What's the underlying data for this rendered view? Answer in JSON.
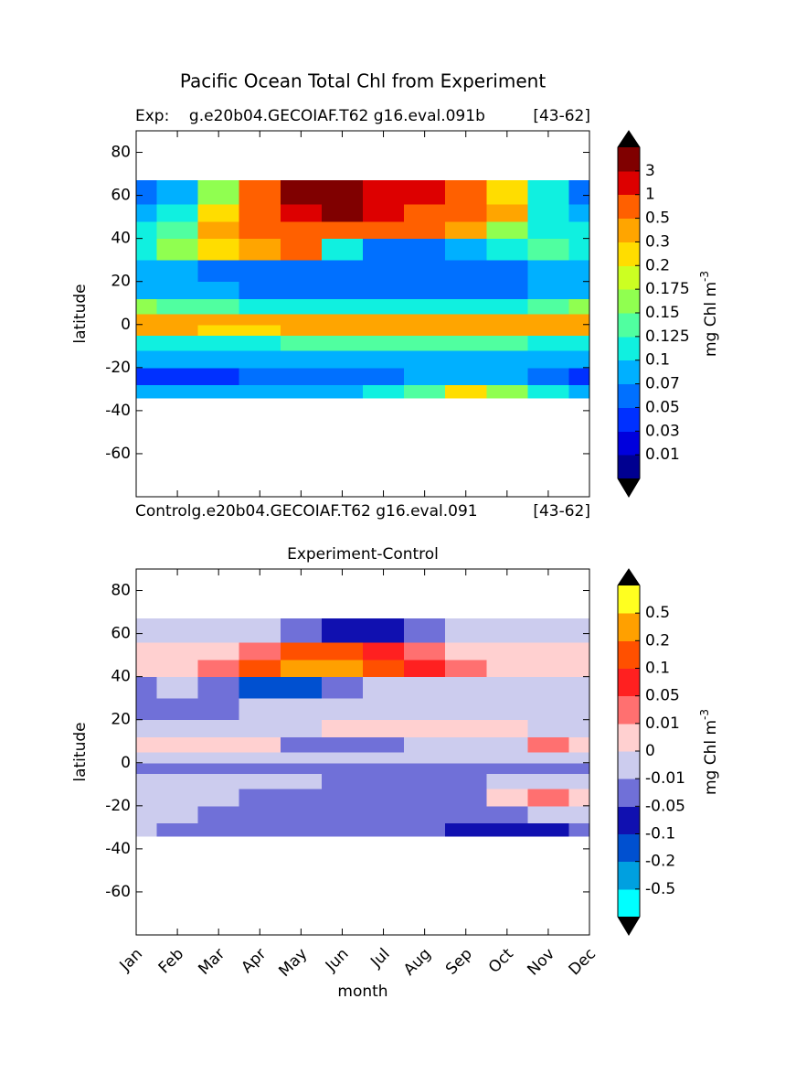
{
  "chart_data": [
    {
      "type": "contour",
      "title": "Pacific Ocean Total Chl from Experiment",
      "subtitle_left": "Exp:    g.e20b04.GECOIAF.T62 g16.eval.091b",
      "subtitle_right": "[43-62]",
      "footer_left": "Controlg.e20b04.GECOIAF.T62 g16.eval.091",
      "footer_right": "[43-62]",
      "ylabel": "latitude",
      "ylim": [
        -80,
        90
      ],
      "yticks": [
        -60,
        -40,
        -20,
        0,
        20,
        40,
        60,
        80
      ],
      "lat_bins": [
        -34,
        -28,
        -20,
        -12,
        -5,
        0,
        5,
        12,
        20,
        30,
        40,
        48,
        56,
        67
      ],
      "z": [
        [
          0.08,
          0.08,
          0.08,
          0.08,
          0.08,
          0.09,
          0.11,
          0.14,
          0.2,
          0.15,
          0.1,
          0.08
        ],
        [
          0.04,
          0.04,
          0.045,
          0.06,
          0.065,
          0.065,
          0.065,
          0.07,
          0.08,
          0.07,
          0.06,
          0.045
        ],
        [
          0.085,
          0.085,
          0.085,
          0.085,
          0.085,
          0.085,
          0.09,
          0.09,
          0.09,
          0.085,
          0.085,
          0.085
        ],
        [
          0.11,
          0.11,
          0.12,
          0.12,
          0.13,
          0.13,
          0.14,
          0.14,
          0.14,
          0.13,
          0.12,
          0.11
        ],
        [
          0.3,
          0.3,
          0.25,
          0.25,
          0.3,
          0.3,
          0.35,
          0.35,
          0.3,
          0.3,
          0.3,
          0.35
        ],
        [
          0.35,
          0.35,
          0.3,
          0.3,
          0.35,
          0.35,
          0.4,
          0.4,
          0.35,
          0.35,
          0.35,
          0.35
        ],
        [
          0.15,
          0.14,
          0.13,
          0.12,
          0.12,
          0.12,
          0.12,
          0.12,
          0.12,
          0.12,
          0.13,
          0.15
        ],
        [
          0.09,
          0.08,
          0.08,
          0.06,
          0.06,
          0.06,
          0.06,
          0.06,
          0.06,
          0.06,
          0.08,
          0.09
        ],
        [
          0.08,
          0.07,
          0.06,
          0.05,
          0.05,
          0.05,
          0.055,
          0.055,
          0.055,
          0.06,
          0.07,
          0.08
        ],
        [
          0.12,
          0.15,
          0.25,
          0.35,
          0.6,
          0.1,
          0.06,
          0.06,
          0.07,
          0.1,
          0.13,
          0.12
        ],
        [
          0.1,
          0.13,
          0.3,
          0.6,
          0.7,
          0.7,
          0.6,
          0.5,
          0.3,
          0.15,
          0.12,
          0.1
        ],
        [
          0.08,
          0.1,
          0.2,
          0.6,
          2,
          4,
          1.2,
          0.8,
          0.7,
          0.3,
          0.12,
          0.08
        ],
        [
          0.05,
          0.07,
          0.15,
          0.5,
          5,
          5,
          2,
          1,
          0.8,
          0.2,
          0.1,
          0.05
        ]
      ],
      "levels": [
        0.01,
        0.03,
        0.05,
        0.07,
        0.1,
        0.125,
        0.15,
        0.175,
        0.2,
        0.3,
        0.5,
        1,
        3
      ],
      "colors": [
        "#000090",
        "#0000dd",
        "#0030ff",
        "#0070ff",
        "#00b0ff",
        "#10f0e0",
        "#50ffa0",
        "#90ff50",
        "#ccff22",
        "#ffdd00",
        "#ffa500",
        "#ff6000",
        "#dd0000",
        "#800000"
      ],
      "extend_colors": [
        "#000000",
        "#000000"
      ],
      "colorbar_label": "mg Chl m",
      "colorbar_label_sup": "-3"
    },
    {
      "type": "contour",
      "title": "Experiment-Control",
      "ylabel": "latitude",
      "xlabel": "month",
      "categories": [
        "Jan",
        "Feb",
        "Mar",
        "Apr",
        "May",
        "Jun",
        "Jul",
        "Aug",
        "Sep",
        "Oct",
        "Nov",
        "Dec"
      ],
      "ylim": [
        -80,
        90
      ],
      "yticks": [
        -60,
        -40,
        -20,
        0,
        20,
        40,
        60,
        80
      ],
      "lat_bins": [
        -34,
        -28,
        -20,
        -12,
        -5,
        0,
        5,
        12,
        20,
        30,
        40,
        48,
        56,
        67
      ],
      "z": [
        [
          -0.01,
          -0.03,
          -0.03,
          -0.03,
          -0.03,
          -0.03,
          -0.03,
          -0.03,
          -0.08,
          -0.08,
          -0.08,
          -0.03
        ],
        [
          -0.005,
          -0.005,
          -0.03,
          -0.03,
          -0.03,
          -0.03,
          -0.03,
          -0.03,
          -0.03,
          -0.03,
          -0.005,
          -0.005
        ],
        [
          -0.005,
          -0.005,
          -0.005,
          -0.03,
          -0.03,
          -0.03,
          -0.03,
          -0.03,
          -0.03,
          0.005,
          0.02,
          0.005
        ],
        [
          -0.005,
          -0.005,
          -0.005,
          -0.005,
          -0.005,
          -0.03,
          -0.03,
          -0.03,
          -0.03,
          -0.005,
          -0.005,
          -0.005
        ],
        [
          -0.03,
          -0.03,
          -0.03,
          -0.03,
          -0.03,
          -0.03,
          -0.03,
          -0.03,
          -0.03,
          -0.03,
          -0.03,
          -0.03
        ],
        [
          -0.005,
          -0.005,
          -0.005,
          -0.005,
          -0.005,
          -0.005,
          -0.005,
          -0.005,
          -0.005,
          -0.005,
          -0.005,
          -0.005
        ],
        [
          0.005,
          0.005,
          0.005,
          0.005,
          -0.03,
          -0.03,
          -0.03,
          -0.005,
          -0.005,
          -0.005,
          0.02,
          0.005
        ],
        [
          -0.005,
          -0.005,
          -0.005,
          -0.005,
          -0.005,
          0.005,
          0.005,
          0.005,
          0.005,
          0.005,
          -0.005,
          -0.005
        ],
        [
          -0.03,
          -0.03,
          -0.03,
          -0.005,
          -0.005,
          -0.005,
          -0.005,
          -0.005,
          -0.005,
          -0.005,
          -0.005,
          -0.005
        ],
        [
          -0.03,
          -0.005,
          -0.03,
          -0.15,
          -0.15,
          -0.03,
          -0.005,
          -0.005,
          -0.005,
          -0.005,
          -0.005,
          -0.005
        ],
        [
          0.005,
          0.005,
          0.03,
          0.15,
          0.3,
          0.3,
          0.15,
          0.07,
          0.03,
          0.005,
          0.005,
          0.005
        ],
        [
          0.005,
          0.005,
          0.005,
          0.03,
          0.15,
          0.15,
          0.07,
          0.03,
          0.005,
          0.005,
          0.005,
          0.005
        ],
        [
          -0.005,
          -0.005,
          -0.005,
          -0.005,
          -0.03,
          -0.08,
          -0.08,
          -0.03,
          -0.005,
          -0.005,
          -0.005,
          -0.005
        ]
      ],
      "levels": [
        -0.5,
        -0.2,
        -0.1,
        -0.05,
        -0.01,
        0,
        0.01,
        0.05,
        0.1,
        0.2,
        0.5
      ],
      "colors": [
        "#00ffff",
        "#00a0e0",
        "#0050d0",
        "#1010b0",
        "#7070d8",
        "#ccccee",
        "#ffd0d0",
        "#ff7070",
        "#ff2020",
        "#ff5000",
        "#ffa000",
        "#ffff20"
      ],
      "extend_colors": [
        "#000000",
        "#000000"
      ],
      "colorbar_label": "mg Chl m",
      "colorbar_label_sup": "-3"
    }
  ]
}
